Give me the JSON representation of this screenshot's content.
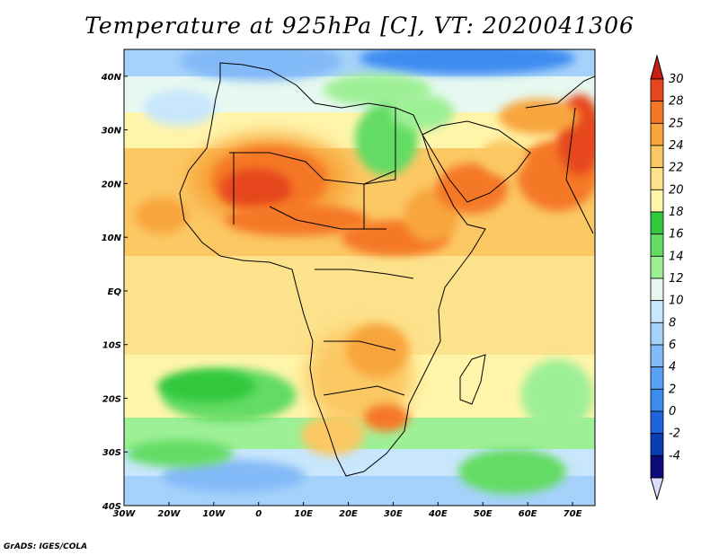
{
  "title": "Temperature at 925hPa [C], VT: 2020041306",
  "credit": "GrADS: IGES/COLA",
  "map": {
    "lon_range": [
      -30,
      75
    ],
    "lat_range": [
      -40,
      45
    ],
    "lon_ticks": [
      {
        "value": -30,
        "label": "30W"
      },
      {
        "value": -20,
        "label": "20W"
      },
      {
        "value": -10,
        "label": "10W"
      },
      {
        "value": 0,
        "label": "0"
      },
      {
        "value": 10,
        "label": "10E"
      },
      {
        "value": 20,
        "label": "20E"
      },
      {
        "value": 30,
        "label": "30E"
      },
      {
        "value": 40,
        "label": "40E"
      },
      {
        "value": 50,
        "label": "50E"
      },
      {
        "value": 60,
        "label": "60E"
      },
      {
        "value": 70,
        "label": "70E"
      }
    ],
    "lat_ticks": [
      {
        "value": 40,
        "label": "40N"
      },
      {
        "value": 30,
        "label": "30N"
      },
      {
        "value": 20,
        "label": "20N"
      },
      {
        "value": 10,
        "label": "10N"
      },
      {
        "value": 0,
        "label": "EQ"
      },
      {
        "value": -10,
        "label": "10S"
      },
      {
        "value": -20,
        "label": "20S"
      },
      {
        "value": -30,
        "label": "30S"
      },
      {
        "value": -40,
        "label": "40S"
      }
    ]
  },
  "colorbar": {
    "levels": [
      {
        "label": "-4",
        "color": "#0a0a78"
      },
      {
        "label": "-2",
        "color": "#0a3cb4"
      },
      {
        "label": "0",
        "color": "#1e64dc"
      },
      {
        "label": "2",
        "color": "#3c8cf0"
      },
      {
        "label": "4",
        "color": "#5aa0f5"
      },
      {
        "label": "6",
        "color": "#82b9f8"
      },
      {
        "label": "8",
        "color": "#a5d2fa"
      },
      {
        "label": "10",
        "color": "#c8e6fc"
      },
      {
        "label": "12",
        "color": "#e6f8f0"
      },
      {
        "label": "14",
        "color": "#9ef096"
      },
      {
        "label": "16",
        "color": "#64dc64"
      },
      {
        "label": "18",
        "color": "#32c83c"
      },
      {
        "label": "20",
        "color": "#fff5aa"
      },
      {
        "label": "22",
        "color": "#fde28c"
      },
      {
        "label": "24",
        "color": "#fbc864"
      },
      {
        "label": "25",
        "color": "#f8a53c"
      },
      {
        "label": "28",
        "color": "#f57828"
      },
      {
        "label": "30",
        "color": "#e6461e"
      }
    ],
    "over_color": "#c81e14",
    "under_color": "#dcdcff"
  }
}
